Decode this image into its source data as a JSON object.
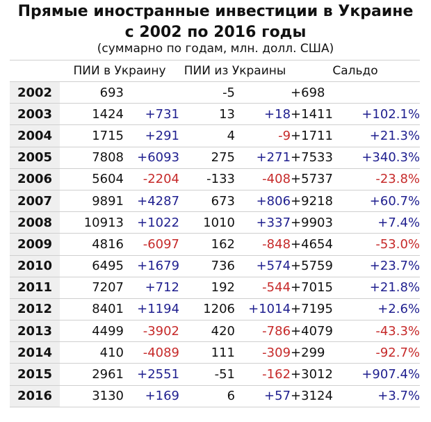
{
  "title_line1": "Прямые иностранные инвестиции в Украине",
  "title_line2": "с 2002 по 2016 годы",
  "subtitle": "(суммарно по годам, млн. долл. США)",
  "chart_data": {
    "type": "table",
    "columns": [
      "",
      "ПИИ в Украину",
      "ПИИ из Украины",
      "Сальдо"
    ],
    "rows": [
      {
        "year": "2002",
        "fdi_in": "693",
        "fdi_in_chg": "",
        "fdi_out": "-5",
        "fdi_out_chg": "",
        "saldo": "+698",
        "saldo_chg": ""
      },
      {
        "year": "2003",
        "fdi_in": "1424",
        "fdi_in_chg": "+731",
        "fdi_out": "13",
        "fdi_out_chg": "+18",
        "saldo": "+1411",
        "saldo_chg": "+102.1%"
      },
      {
        "year": "2004",
        "fdi_in": "1715",
        "fdi_in_chg": "+291",
        "fdi_out": "4",
        "fdi_out_chg": "-9",
        "saldo": "+1711",
        "saldo_chg": "+21.3%"
      },
      {
        "year": "2005",
        "fdi_in": "7808",
        "fdi_in_chg": "+6093",
        "fdi_out": "275",
        "fdi_out_chg": "+271",
        "saldo": "+7533",
        "saldo_chg": "+340.3%"
      },
      {
        "year": "2006",
        "fdi_in": "5604",
        "fdi_in_chg": "-2204",
        "fdi_out": "-133",
        "fdi_out_chg": "-408",
        "saldo": "+5737",
        "saldo_chg": "-23.8%"
      },
      {
        "year": "2007",
        "fdi_in": "9891",
        "fdi_in_chg": "+4287",
        "fdi_out": "673",
        "fdi_out_chg": "+806",
        "saldo": "+9218",
        "saldo_chg": "+60.7%"
      },
      {
        "year": "2008",
        "fdi_in": "10913",
        "fdi_in_chg": "+1022",
        "fdi_out": "1010",
        "fdi_out_chg": "+337",
        "saldo": "+9903",
        "saldo_chg": "+7.4%"
      },
      {
        "year": "2009",
        "fdi_in": "4816",
        "fdi_in_chg": "-6097",
        "fdi_out": "162",
        "fdi_out_chg": "-848",
        "saldo": "+4654",
        "saldo_chg": "-53.0%"
      },
      {
        "year": "2010",
        "fdi_in": "6495",
        "fdi_in_chg": "+1679",
        "fdi_out": "736",
        "fdi_out_chg": "+574",
        "saldo": "+5759",
        "saldo_chg": "+23.7%"
      },
      {
        "year": "2011",
        "fdi_in": "7207",
        "fdi_in_chg": "+712",
        "fdi_out": "192",
        "fdi_out_chg": "-544",
        "saldo": "+7015",
        "saldo_chg": "+21.8%"
      },
      {
        "year": "2012",
        "fdi_in": "8401",
        "fdi_in_chg": "+1194",
        "fdi_out": "1206",
        "fdi_out_chg": "+1014",
        "saldo": "+7195",
        "saldo_chg": "+2.6%"
      },
      {
        "year": "2013",
        "fdi_in": "4499",
        "fdi_in_chg": "-3902",
        "fdi_out": "420",
        "fdi_out_chg": "-786",
        "saldo": "+4079",
        "saldo_chg": "-43.3%"
      },
      {
        "year": "2014",
        "fdi_in": "410",
        "fdi_in_chg": "-4089",
        "fdi_out": "111",
        "fdi_out_chg": "-309",
        "saldo": "+299",
        "saldo_chg": "-92.7%"
      },
      {
        "year": "2015",
        "fdi_in": "2961",
        "fdi_in_chg": "+2551",
        "fdi_out": "-51",
        "fdi_out_chg": "-162",
        "saldo": "+3012",
        "saldo_chg": "+907.4%"
      },
      {
        "year": "2016",
        "fdi_in": "3130",
        "fdi_in_chg": "+169",
        "fdi_out": "6",
        "fdi_out_chg": "+57",
        "saldo": "+3124",
        "saldo_chg": "+3.7%"
      }
    ],
    "colors": {
      "positive_change": "#1f1f8f",
      "negative_change": "#c62a2a",
      "year_cell_background": "#efefef"
    }
  }
}
